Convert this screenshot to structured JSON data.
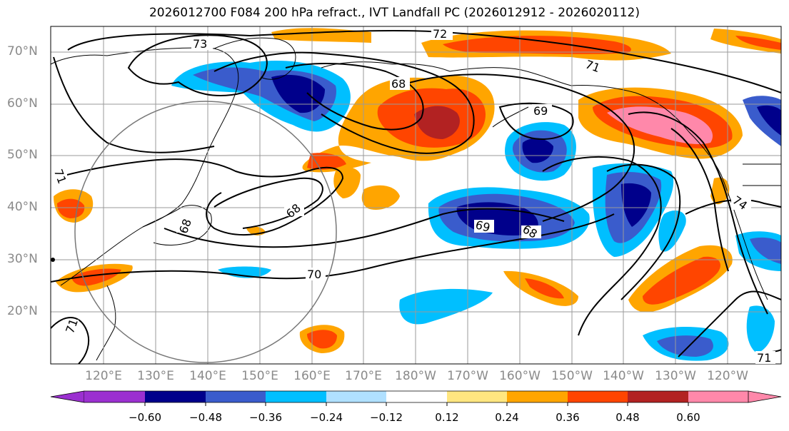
{
  "title": "2026012700 F084 200 hPa refract., IVT Landfall PC (2026012912 - 2026020112)",
  "lat_labels": [
    "70°N",
    "60°N",
    "50°N",
    "40°N",
    "30°N",
    "20°N"
  ],
  "lon_labels": [
    "120°E",
    "130°E",
    "140°E",
    "150°E",
    "160°E",
    "170°E",
    "180°W",
    "170°W",
    "160°W",
    "150°W",
    "140°W",
    "130°W",
    "120°W"
  ],
  "contour_labels": {
    "c72": "72",
    "c73": "73",
    "c71a": "71",
    "c71b": "71",
    "c71c": "71",
    "c71d": "71",
    "c68a": "68",
    "c68b": "68",
    "c68c": "68",
    "c68d": "68",
    "c69a": "69",
    "c69b": "69",
    "c70": "70",
    "c74": "74"
  },
  "colorbar": {
    "ticks": [
      "−0.60",
      "−0.48",
      "−0.36",
      "−0.24",
      "−0.12",
      "0.12",
      "0.24",
      "0.36",
      "0.48",
      "0.60"
    ],
    "colors": [
      "#9b30d0",
      "#00008b",
      "#3a5ccc",
      "#00bfff",
      "#b0e0ff",
      "#ffffff",
      "#ffe680",
      "#ffa500",
      "#ff4500",
      "#b22222",
      "#ff88aa",
      "#ff88aa"
    ]
  },
  "colors": {
    "land_line": "#000000",
    "grid": "#9a9a9a",
    "circle": "#777777"
  }
}
